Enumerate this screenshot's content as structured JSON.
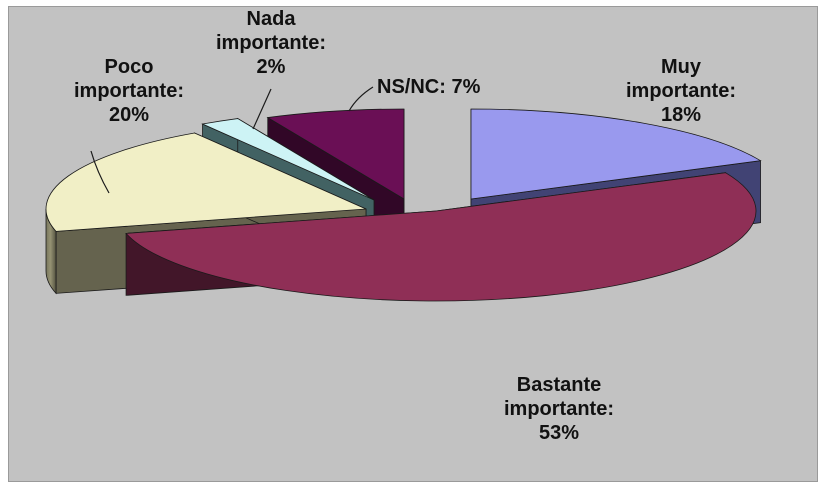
{
  "chart_data": {
    "type": "pie",
    "title": "",
    "style": "3d-exploded",
    "slices": [
      {
        "key": "muy",
        "label_lines": [
          "Muy",
          "importante:",
          "18%"
        ],
        "value": 18,
        "top_color": "#9999ee",
        "side_color": "#4d4f88"
      },
      {
        "key": "bastante",
        "label_lines": [
          "Bastante",
          "importante:",
          "53%"
        ],
        "value": 53,
        "top_color": "#8f2f56",
        "side_color": "#4e1a30"
      },
      {
        "key": "poco",
        "label_lines": [
          "Poco",
          "importante:",
          "20%"
        ],
        "value": 20,
        "top_color": "#f1efc6",
        "side_color": "#77755c"
      },
      {
        "key": "nada",
        "label_lines": [
          "Nada",
          "importante:",
          "2%"
        ],
        "value": 2,
        "top_color": "#cdf3f5",
        "side_color": "#4e7375"
      },
      {
        "key": "nsnc",
        "label_lines": [
          "NS/NC: 7%"
        ],
        "value": 7,
        "top_color": "#6a0f55",
        "side_color": "#3a082e"
      }
    ]
  }
}
